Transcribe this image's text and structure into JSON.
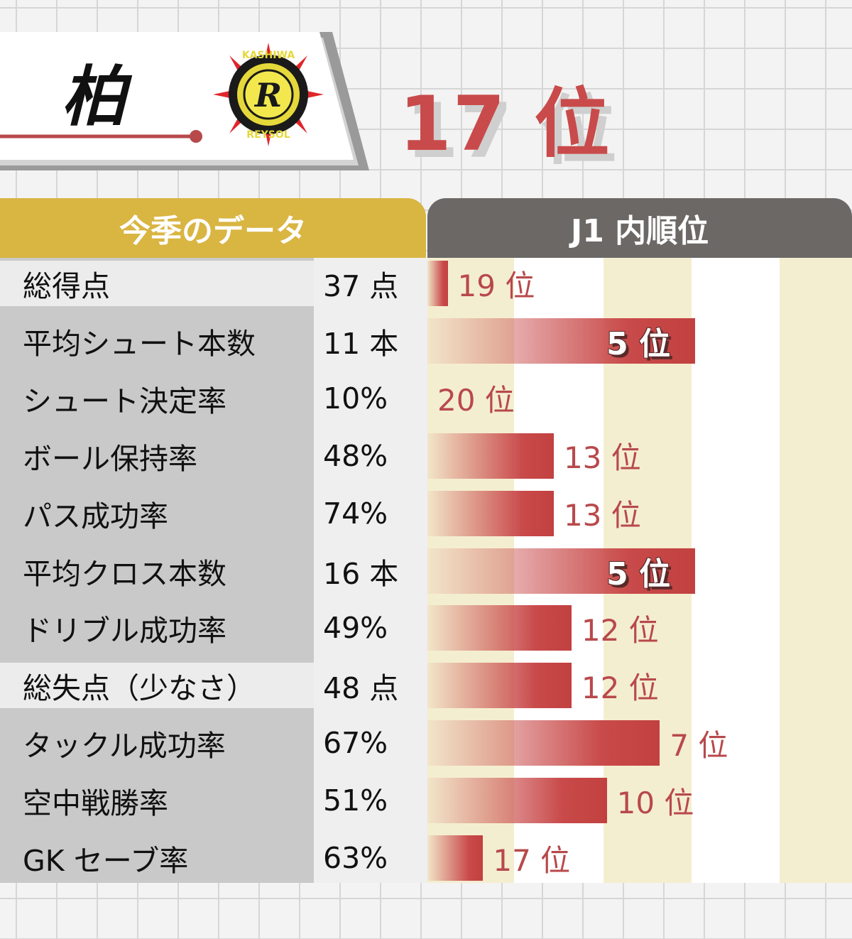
{
  "header": {
    "team": "柏",
    "emblem_text_top": "KASHIWA",
    "emblem_text_bottom": "REYSOL",
    "emblem_letter": "R",
    "overall_rank": "17 位"
  },
  "table": {
    "left_header": "今季のデータ",
    "right_header": "J1 内順位"
  },
  "colors": {
    "accent_red": "#c94a4a",
    "header_gold": "#d9b542",
    "header_gray": "#6b6866",
    "band_cream": "#f4eed0"
  },
  "chart_data": {
    "type": "bar",
    "orientation": "horizontal",
    "scale": "rank (shorter bar = lower rank), 20 teams",
    "categories": [
      "総得点",
      "平均シュート本数",
      "シュート決定率",
      "ボール保持率",
      "パス成功率",
      "平均クロス本数",
      "ドリブル成功率",
      "総失点（少なさ）",
      "タックル成功率",
      "空中戦勝率",
      "GK セーブ率"
    ],
    "stat_values": [
      "37 点",
      "11 本",
      "10%",
      "48%",
      "74%",
      "16 本",
      "49%",
      "48 点",
      "67%",
      "51%",
      "63%"
    ],
    "ranks": [
      19,
      5,
      20,
      13,
      13,
      5,
      12,
      12,
      7,
      10,
      17
    ],
    "rank_labels": [
      "19 位",
      "5 位",
      "20 位",
      "13 位",
      "13 位",
      "5 位",
      "12 位",
      "12 位",
      "7 位",
      "10 位",
      "17 位"
    ],
    "highlighted": [
      false,
      true,
      false,
      false,
      false,
      true,
      false,
      false,
      false,
      false,
      false
    ],
    "light_rows": [
      true,
      false,
      false,
      false,
      false,
      false,
      false,
      true,
      false,
      false,
      false
    ],
    "rank_range": [
      1,
      20
    ]
  }
}
